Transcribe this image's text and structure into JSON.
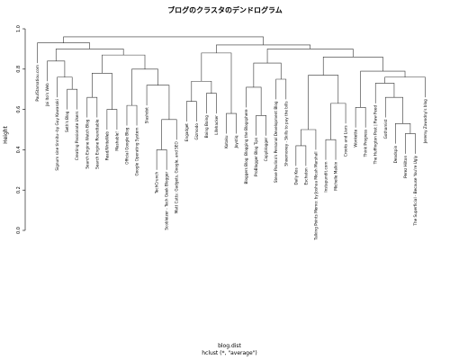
{
  "chart_data": {
    "type": "dendrogram",
    "title": "ブログのクラスタのデンドログラム",
    "ylabel": "Height",
    "xlabel": "blog.dist",
    "subtitle": "hclust (*, \"average\")",
    "ylim": [
      0,
      1
    ],
    "yticks": [
      {
        "value": 0,
        "label": "0.0"
      },
      0.2,
      0.4,
      0.6,
      0.8,
      {
        "value": 1,
        "label": "1.0"
      }
    ],
    "labels": [
      "PaulStamatiou.com",
      "Joi Ito's Web",
      "Search Engine Watch Blog",
      "Read/WriteWeb",
      "Official Google Blog",
      "Google Operating System",
      "Search Engine Roundtable",
      "Slashdot",
      "Mashable!",
      "TechCrunch",
      "Engadget",
      "Gizmodo",
      "Boing Boing",
      "Lifehacker",
      "Kotaku",
      "Joystiq",
      "Signum sine tinnitu--by Guy Kawasaki",
      "Seth's Blog",
      "Creating Passionate Users",
      "Bloggers Blog: Blogging the Blogsphere",
      "ProBlogger Blog Tips",
      "Copyblogger",
      "Daily Kos",
      "Eschaton",
      "Talking Points Memo: by Joshua Micah Marshall",
      "Instapundit.com",
      "Michelle Malkin",
      "Wonkette",
      "Think Progress",
      "The Huffington Post | Raw Feed",
      "Crooks and Liars",
      "Gothamist",
      "Deadspin",
      "Perez Hilton",
      "The Superficial - Because You're Ugly",
      "Jeremy Zawodny's blog",
      "Scobleizer - Tech Geek Blogger",
      "Matt Cutts: Gadgets, Google, and SEO",
      "Steve Pavlina's Personal Development Blog",
      "Shoemoney - Skills to pay the bills"
    ],
    "tree": {
      "height": 0.96,
      "children": [
        {
          "height": 0.93,
          "children": [
            0,
            {
              "height": 0.9,
              "children": [
                {
                  "height": 0.84,
                  "children": [
                    1,
                    {
                      "height": 0.76,
                      "children": [
                        16,
                        {
                          "height": 0.7,
                          "children": [
                            17,
                            18
                          ]
                        }
                      ]
                    }
                  ]
                },
                {
                  "height": 0.87,
                  "children": [
                    {
                      "height": 0.78,
                      "children": [
                        {
                          "height": 0.66,
                          "children": [
                            2,
                            6
                          ]
                        },
                        {
                          "height": 0.6,
                          "children": [
                            3,
                            8
                          ]
                        }
                      ]
                    },
                    {
                      "height": 0.8,
                      "children": [
                        {
                          "height": 0.62,
                          "children": [
                            4,
                            5
                          ]
                        },
                        {
                          "height": 0.72,
                          "children": [
                            7,
                            {
                              "height": 0.55,
                              "children": [
                                {
                                  "height": 0.4,
                                  "children": [
                                    9,
                                    36
                                  ]
                                },
                                37
                              ]
                            }
                          ]
                        }
                      ]
                    }
                  ]
                }
              ]
            }
          ]
        },
        {
          "height": 0.92,
          "children": [
            {
              "height": 0.88,
              "children": [
                {
                  "height": 0.74,
                  "children": [
                    {
                      "height": 0.64,
                      "children": [
                        10,
                        11
                      ]
                    },
                    {
                      "height": 0.68,
                      "children": [
                        12,
                        13
                      ]
                    }
                  ]
                },
                {
                  "height": 0.58,
                  "children": [
                    14,
                    15
                  ]
                }
              ]
            },
            {
              "height": 0.9,
              "children": [
                {
                  "height": 0.83,
                  "children": [
                    {
                      "height": 0.71,
                      "children": [
                        19,
                        {
                          "height": 0.57,
                          "children": [
                            20,
                            21
                          ]
                        }
                      ]
                    },
                    {
                      "height": 0.75,
                      "children": [
                        38,
                        39
                      ]
                    }
                  ]
                },
                {
                  "height": 0.86,
                  "children": [
                    {
                      "height": 0.77,
                      "children": [
                        {
                          "height": 0.5,
                          "children": [
                            {
                              "height": 0.42,
                              "children": [
                                22,
                                23
                              ]
                            },
                            24
                          ]
                        },
                        {
                          "height": 0.63,
                          "children": [
                            {
                              "height": 0.45,
                              "children": [
                                25,
                                26
                              ]
                            },
                            30
                          ]
                        }
                      ]
                    },
                    {
                      "height": 0.79,
                      "children": [
                        {
                          "height": 0.61,
                          "children": [
                            27,
                            28
                          ]
                        },
                        {
                          "height": 0.76,
                          "children": [
                            {
                              "height": 0.73,
                              "children": [
                                29,
                                {
                                  "height": 0.66,
                                  "children": [
                                    31,
                                    {
                                      "height": 0.53,
                                      "children": [
                                        32,
                                        {
                                          "height": 0.48,
                                          "children": [
                                            33,
                                            34
                                          ]
                                        }
                                      ]
                                    }
                                  ]
                                }
                              ]
                            },
                            35
                          ]
                        }
                      ]
                    }
                  ]
                }
              ]
            }
          ]
        }
      ]
    }
  }
}
